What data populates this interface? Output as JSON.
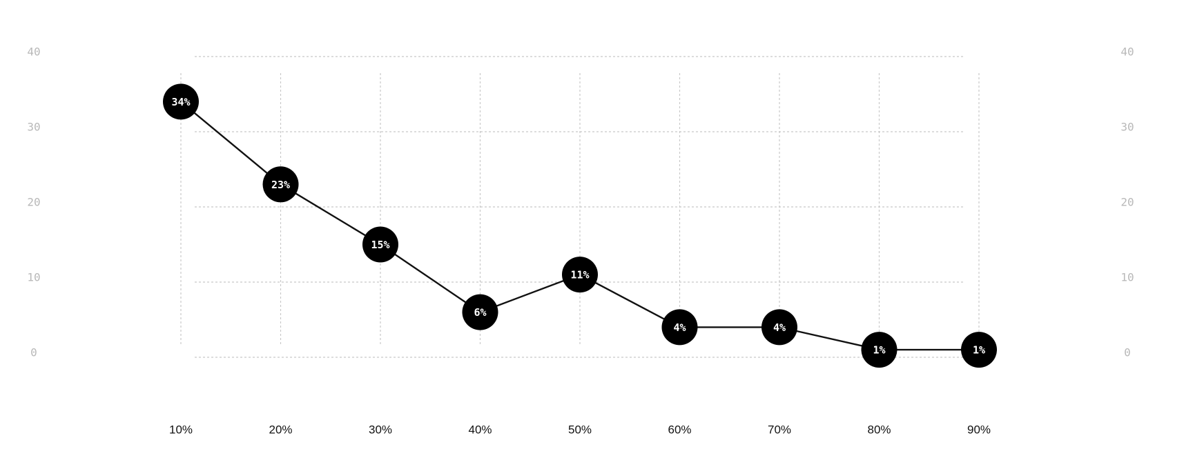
{
  "chart_data": {
    "type": "line",
    "title": "",
    "xlabel": "",
    "ylabel": "",
    "categories": [
      "10%",
      "20%",
      "30%",
      "40%",
      "50%",
      "60%",
      "70%",
      "80%",
      "90%"
    ],
    "values": [
      34,
      23,
      15,
      6,
      11,
      4,
      4,
      1,
      1
    ],
    "data_labels": [
      "34%",
      "23%",
      "15%",
      "6%",
      "11%",
      "4%",
      "4%",
      "1%",
      "1%"
    ],
    "y_ticks": [
      "0",
      "10",
      "20",
      "30",
      "40"
    ],
    "y_tick_values": [
      0,
      10,
      20,
      30,
      40
    ],
    "ylim": [
      0,
      40
    ],
    "grid": true,
    "y_axis_sides": "both",
    "colors": {
      "line": "#111111",
      "marker": "#000000",
      "marker_text": "#ffffff",
      "grid": "#c8c8c8",
      "y_tick_text": "#b8b8b8",
      "x_tick_text": "#111111"
    }
  }
}
